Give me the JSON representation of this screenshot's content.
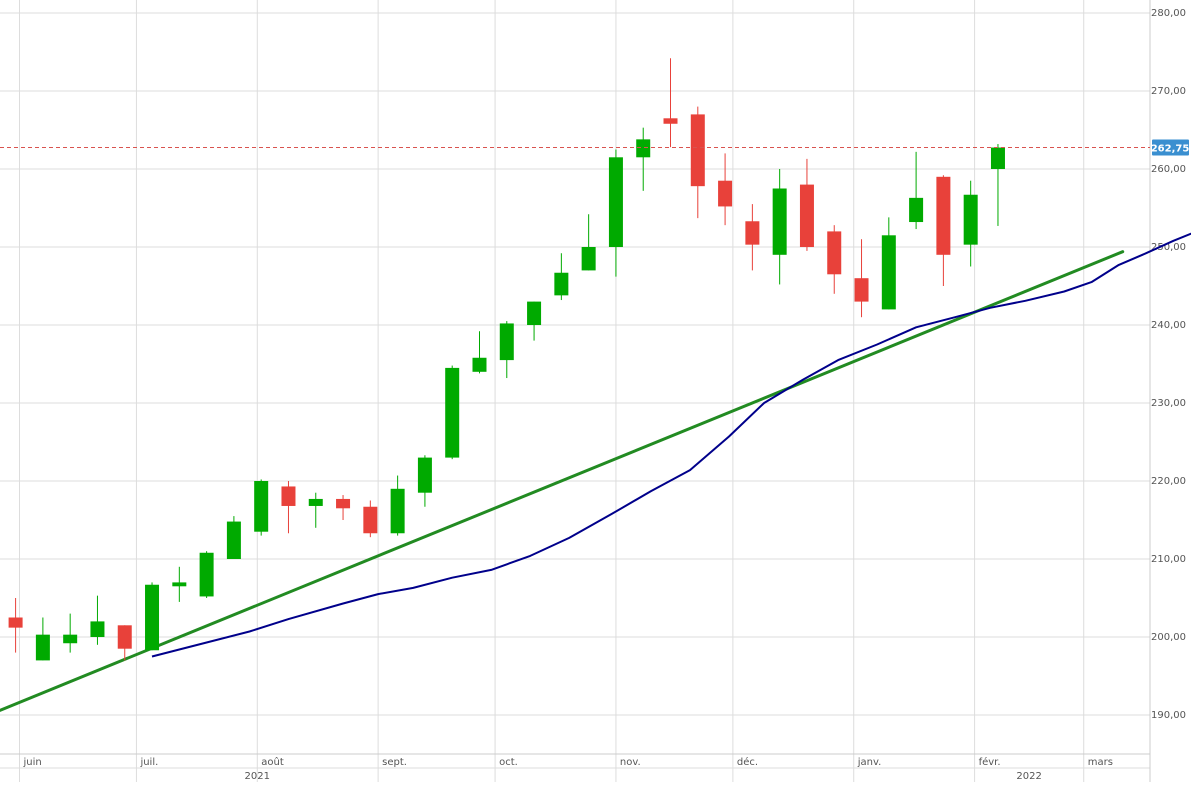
{
  "chart_data": {
    "type": "candlestick",
    "interval": "weekly",
    "y_axis": {
      "min": 185,
      "max": 280,
      "ticks": [
        190,
        200,
        210,
        220,
        230,
        240,
        250,
        260,
        270,
        280
      ],
      "tick_labels": [
        "190,00",
        "200,00",
        "210,00",
        "220,00",
        "230,00",
        "240,00",
        "250,00",
        "260,00",
        "270,00",
        "280,00"
      ],
      "side": "right"
    },
    "x_axis": {
      "months": [
        {
          "label": "juin",
          "date": "2021-06-01"
        },
        {
          "label": "juil.",
          "date": "2021-07-01"
        },
        {
          "label": "août",
          "date": "2021-08-01"
        },
        {
          "label": "sept.",
          "date": "2021-09-01"
        },
        {
          "label": "oct.",
          "date": "2021-10-01"
        },
        {
          "label": "nov.",
          "date": "2021-11-01"
        },
        {
          "label": "déc.",
          "date": "2021-12-01"
        },
        {
          "label": "janv.",
          "date": "2022-01-01"
        },
        {
          "label": "févr.",
          "date": "2022-02-01"
        },
        {
          "label": "mars",
          "date": "2022-03-01"
        }
      ],
      "years": [
        {
          "label": "2021",
          "date": "2021-08-01"
        },
        {
          "label": "2022",
          "date": "2022-02-15"
        }
      ],
      "range": [
        "2021-05-27",
        "2022-03-18"
      ]
    },
    "grid": true,
    "current_price": {
      "value": 262.75,
      "label": "262,75"
    },
    "candles": [
      {
        "date": "2021-05-31",
        "open": 202.5,
        "high": 205.0,
        "low": 198.0,
        "close": 201.2
      },
      {
        "date": "2021-06-07",
        "open": 197.0,
        "high": 202.5,
        "low": 197.0,
        "close": 200.3
      },
      {
        "date": "2021-06-14",
        "open": 199.2,
        "high": 203.0,
        "low": 198.0,
        "close": 200.3
      },
      {
        "date": "2021-06-21",
        "open": 200.0,
        "high": 205.3,
        "low": 199.0,
        "close": 202.0
      },
      {
        "date": "2021-06-28",
        "open": 201.5,
        "high": 201.5,
        "low": 197.0,
        "close": 198.5
      },
      {
        "date": "2021-07-05",
        "open": 198.3,
        "high": 207.0,
        "low": 198.3,
        "close": 206.7
      },
      {
        "date": "2021-07-12",
        "open": 206.5,
        "high": 209.0,
        "low": 204.5,
        "close": 207.0
      },
      {
        "date": "2021-07-19",
        "open": 205.2,
        "high": 211.0,
        "low": 205.0,
        "close": 210.8
      },
      {
        "date": "2021-07-26",
        "open": 210.0,
        "high": 215.5,
        "low": 210.0,
        "close": 214.8
      },
      {
        "date": "2021-08-02",
        "open": 213.5,
        "high": 220.2,
        "low": 213.0,
        "close": 220.0
      },
      {
        "date": "2021-08-09",
        "open": 219.3,
        "high": 220.0,
        "low": 213.3,
        "close": 216.8
      },
      {
        "date": "2021-08-16",
        "open": 216.8,
        "high": 218.5,
        "low": 214.0,
        "close": 217.7
      },
      {
        "date": "2021-08-23",
        "open": 217.7,
        "high": 218.2,
        "low": 215.0,
        "close": 216.5
      },
      {
        "date": "2021-08-30",
        "open": 216.7,
        "high": 217.5,
        "low": 212.8,
        "close": 213.3
      },
      {
        "date": "2021-09-06",
        "open": 213.3,
        "high": 220.7,
        "low": 213.0,
        "close": 219.0
      },
      {
        "date": "2021-09-13",
        "open": 218.5,
        "high": 223.3,
        "low": 216.7,
        "close": 223.0
      },
      {
        "date": "2021-09-20",
        "open": 223.0,
        "high": 234.8,
        "low": 222.8,
        "close": 234.5
      },
      {
        "date": "2021-09-27",
        "open": 234.0,
        "high": 239.2,
        "low": 233.8,
        "close": 235.8
      },
      {
        "date": "2021-10-04",
        "open": 235.5,
        "high": 240.5,
        "low": 233.2,
        "close": 240.2
      },
      {
        "date": "2021-10-11",
        "open": 240.0,
        "high": 243.0,
        "low": 238.0,
        "close": 243.0
      },
      {
        "date": "2021-10-18",
        "open": 243.8,
        "high": 249.2,
        "low": 243.2,
        "close": 246.7
      },
      {
        "date": "2021-10-25",
        "open": 247.0,
        "high": 254.2,
        "low": 247.0,
        "close": 250.0
      },
      {
        "date": "2021-11-01",
        "open": 250.0,
        "high": 262.5,
        "low": 246.2,
        "close": 261.5
      },
      {
        "date": "2021-11-08",
        "open": 261.5,
        "high": 265.3,
        "low": 257.2,
        "close": 263.8
      },
      {
        "date": "2021-11-15",
        "open": 266.5,
        "high": 274.2,
        "low": 262.8,
        "close": 265.8
      },
      {
        "date": "2021-11-22",
        "open": 267.0,
        "high": 268.0,
        "low": 253.7,
        "close": 257.8
      },
      {
        "date": "2021-11-29",
        "open": 258.5,
        "high": 262.0,
        "low": 252.8,
        "close": 255.2
      },
      {
        "date": "2021-12-06",
        "open": 253.3,
        "high": 255.5,
        "low": 247.0,
        "close": 250.3
      },
      {
        "date": "2021-12-13",
        "open": 249.0,
        "high": 260.0,
        "low": 245.2,
        "close": 257.5
      },
      {
        "date": "2021-12-20",
        "open": 258.0,
        "high": 261.3,
        "low": 249.5,
        "close": 250.0
      },
      {
        "date": "2021-12-27",
        "open": 252.0,
        "high": 252.8,
        "low": 244.0,
        "close": 246.5
      },
      {
        "date": "2022-01-03",
        "open": 246.0,
        "high": 251.0,
        "low": 241.0,
        "close": 243.0
      },
      {
        "date": "2022-01-10",
        "open": 242.0,
        "high": 253.8,
        "low": 242.0,
        "close": 251.5
      },
      {
        "date": "2022-01-17",
        "open": 253.2,
        "high": 262.2,
        "low": 252.3,
        "close": 256.3
      },
      {
        "date": "2022-01-24",
        "open": 259.0,
        "high": 259.2,
        "low": 245.0,
        "close": 249.0
      },
      {
        "date": "2022-01-31",
        "open": 250.3,
        "high": 258.5,
        "low": 247.5,
        "close": 256.7
      },
      {
        "date": "2022-02-07",
        "open": 260.0,
        "high": 263.2,
        "low": 252.7,
        "close": 262.75
      }
    ],
    "moving_average": {
      "color": "#00008b",
      "points": [
        {
          "date": "2021-07-05",
          "value": 197.5
        },
        {
          "date": "2021-07-19",
          "value": 199.3
        },
        {
          "date": "2021-07-30",
          "value": 200.7
        },
        {
          "date": "2021-08-09",
          "value": 202.3
        },
        {
          "date": "2021-08-23",
          "value": 204.3
        },
        {
          "date": "2021-09-01",
          "value": 205.5
        },
        {
          "date": "2021-09-10",
          "value": 206.3
        },
        {
          "date": "2021-09-20",
          "value": 207.6
        },
        {
          "date": "2021-09-30",
          "value": 208.6
        },
        {
          "date": "2021-10-10",
          "value": 210.4
        },
        {
          "date": "2021-10-20",
          "value": 212.7
        },
        {
          "date": "2021-10-31",
          "value": 215.8
        },
        {
          "date": "2021-11-10",
          "value": 218.7
        },
        {
          "date": "2021-11-20",
          "value": 221.4
        },
        {
          "date": "2021-11-30",
          "value": 225.7
        },
        {
          "date": "2021-12-09",
          "value": 230.0
        },
        {
          "date": "2021-12-19",
          "value": 233.0
        },
        {
          "date": "2021-12-28",
          "value": 235.5
        },
        {
          "date": "2022-01-07",
          "value": 237.5
        },
        {
          "date": "2022-01-17",
          "value": 239.7
        },
        {
          "date": "2022-01-27",
          "value": 241.0
        },
        {
          "date": "2022-02-05",
          "value": 242.2
        },
        {
          "date": "2022-02-14",
          "value": 243.1
        },
        {
          "date": "2022-02-24",
          "value": 244.3
        },
        {
          "date": "2022-03-03",
          "value": 245.5
        },
        {
          "date": "2022-03-10",
          "value": 247.7
        },
        {
          "date": "2022-03-17",
          "value": 249.2
        },
        {
          "date": "2022-03-24",
          "value": 250.8
        },
        {
          "date": "2022-03-31",
          "value": 252.2
        }
      ]
    },
    "trendline": {
      "color": "#228b22",
      "start": {
        "date": "2021-05-27",
        "value": 190.6
      },
      "end": {
        "date": "2022-03-11",
        "value": 249.4
      }
    },
    "colors": {
      "up": "#00aa00",
      "down": "#e8413a",
      "grid": "#dddddd",
      "price_line": "#d9534f",
      "price_badge": "#3a8fd0"
    }
  }
}
